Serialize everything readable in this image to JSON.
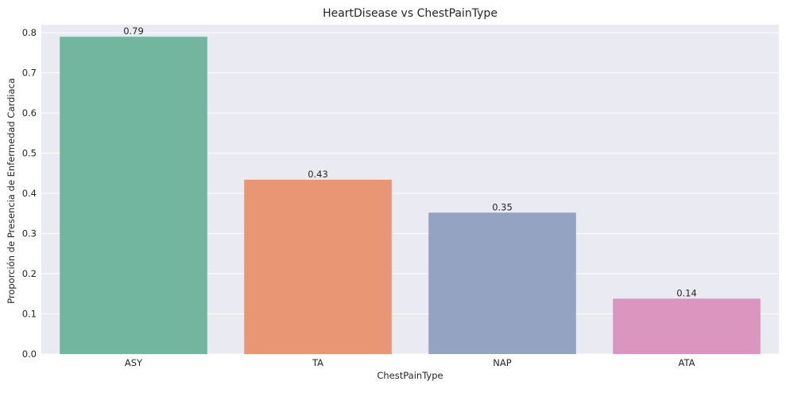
{
  "chart_data": {
    "type": "bar",
    "title": "HeartDisease vs ChestPainType",
    "xlabel": "ChestPainType",
    "ylabel": "Proporción de Presencia de Enfermedad Cardiaca",
    "categories": [
      "ASY",
      "TA",
      "NAP",
      "ATA"
    ],
    "values": [
      0.79,
      0.434,
      0.352,
      0.138
    ],
    "data_labels": [
      "0.79",
      "0.43",
      "0.35",
      "0.14"
    ],
    "ylim": [
      0,
      0.82
    ],
    "yticks": [
      0.0,
      0.1,
      0.2,
      0.3,
      0.4,
      0.5,
      0.6,
      0.7,
      0.8
    ],
    "ytick_labels": [
      "0.0",
      "0.1",
      "0.2",
      "0.3",
      "0.4",
      "0.5",
      "0.6",
      "0.7",
      "0.8"
    ],
    "colors": [
      "#72b6a0",
      "#e99675",
      "#95a3c3",
      "#db96c0"
    ],
    "background": "#eaeaf2",
    "gridline_color": "#ffffff",
    "grid": true,
    "legend": "none"
  }
}
